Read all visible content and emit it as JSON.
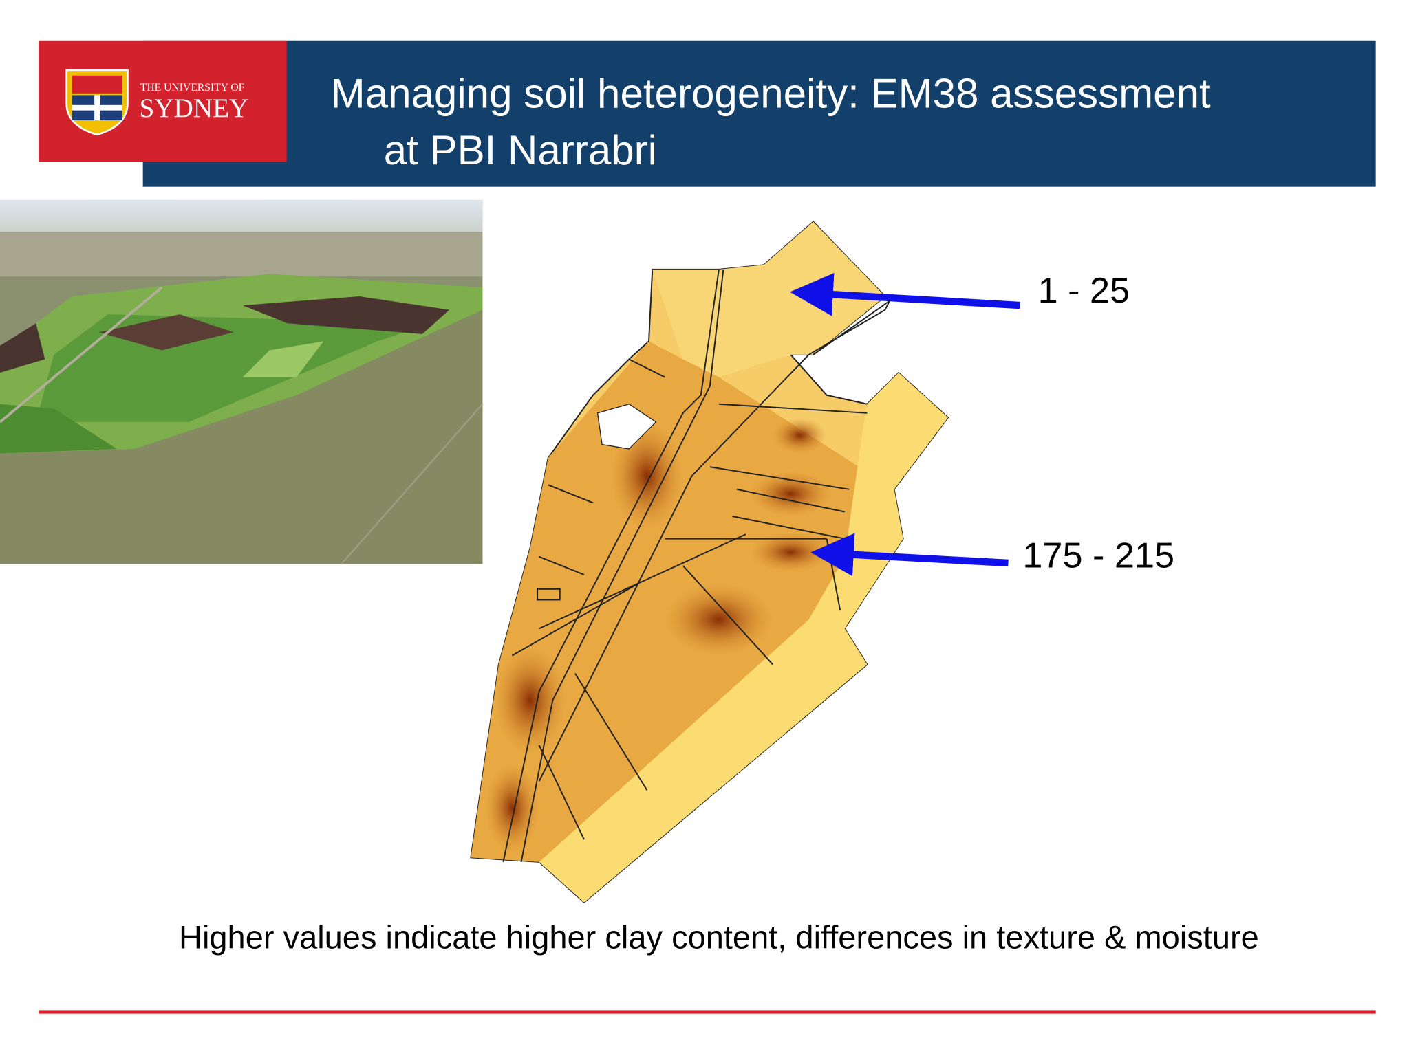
{
  "header": {
    "logo": {
      "line1": "THE UNIVERSITY OF",
      "line2": "SYDNEY"
    },
    "title_lines": [
      "Managing soil heterogeneity: EM38 assessment",
      "at PBI Narrabri"
    ]
  },
  "map_labels": {
    "low": "1 - 25",
    "high": "175 - 215"
  },
  "caption": "Higher values indicate higher clay content, differences in texture & moisture"
}
